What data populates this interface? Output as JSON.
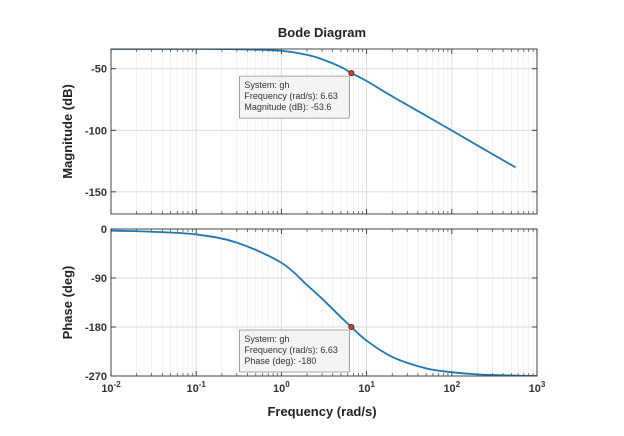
{
  "chart_data": {
    "type": "line",
    "title": "Bode Diagram",
    "xlabel": "Frequency  (rad/s)",
    "x_scale": "log",
    "xlim": [
      0.01,
      1000
    ],
    "x_ticks": [
      {
        "base": "10",
        "exp": "-2",
        "value": 0.01
      },
      {
        "base": "10",
        "exp": "-1",
        "value": 0.1
      },
      {
        "base": "10",
        "exp": "0",
        "value": 1
      },
      {
        "base": "10",
        "exp": "1",
        "value": 10
      },
      {
        "base": "10",
        "exp": "2",
        "value": 100
      },
      {
        "base": "10",
        "exp": "3",
        "value": 1000
      }
    ],
    "grid": true,
    "line_color": "#1f77b4",
    "panels": [
      {
        "name": "magnitude",
        "ylabel": "Magnitude (dB)",
        "ylim": [
          -168,
          -34
        ],
        "y_ticks": [
          {
            "label": "-50",
            "value": -50
          },
          {
            "label": "-100",
            "value": -100
          },
          {
            "label": "-150",
            "value": -150
          }
        ],
        "series": [
          {
            "x": [
              0.01,
              0.03,
              0.1,
              0.3,
              1,
              2,
              3,
              5,
              6.63,
              10,
              20,
              50,
              100,
              200,
              500,
              560
            ],
            "y": [
              -34,
              -34,
              -34,
              -34.2,
              -35.5,
              -38.8,
              -42.3,
              -48.6,
              -53.6,
              -60.0,
              -72.5,
              -88.2,
              -100.2,
              -112.3,
              -128.2,
              -130
            ]
          }
        ],
        "datatip": {
          "x": 6.63,
          "y": -53.6,
          "lines": [
            "System: gh",
            "Frequency (rad/s): 6.63",
            "Magnitude (dB): -53.6"
          ]
        }
      },
      {
        "name": "phase",
        "ylabel": "Phase (deg)",
        "ylim": [
          -270,
          0
        ],
        "y_ticks": [
          {
            "label": "0",
            "value": 0
          },
          {
            "label": "-90",
            "value": -90
          },
          {
            "label": "-180",
            "value": -180
          },
          {
            "label": "-270",
            "value": -270
          }
        ],
        "series": [
          {
            "x": [
              0.01,
              0.03,
              0.1,
              0.3,
              1,
              2,
              3,
              5,
              6.63,
              10,
              20,
              50,
              100,
              200,
              500,
              1000
            ],
            "y": [
              -3,
              -5,
              -10,
              -25,
              -62,
              -103,
              -128,
              -162,
              -180,
              -205,
              -235,
              -256,
              -263,
              -267,
              -269,
              -270
            ]
          }
        ],
        "datatip": {
          "x": 6.63,
          "y": -180,
          "lines": [
            "System: gh",
            "Frequency (rad/s): 6.63",
            "Phase (deg): -180"
          ]
        }
      }
    ]
  }
}
